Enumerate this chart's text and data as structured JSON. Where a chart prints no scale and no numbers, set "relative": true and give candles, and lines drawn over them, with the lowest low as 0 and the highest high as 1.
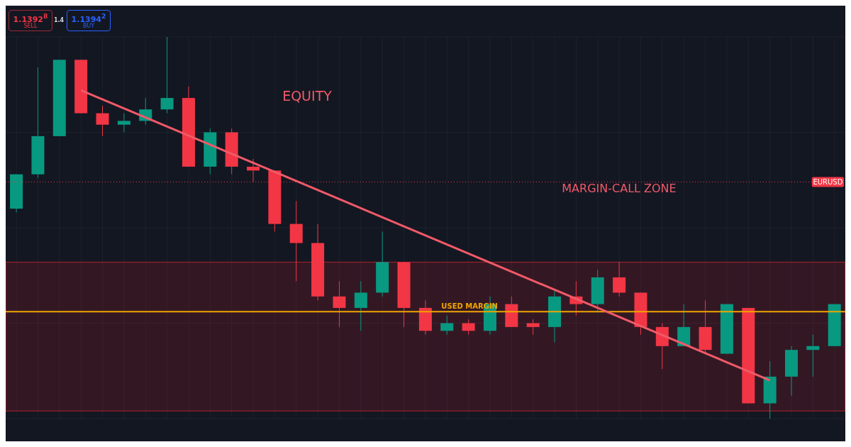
{
  "chart_data": {
    "type": "candlestick",
    "relative": true,
    "categories": [
      null,
      null,
      null,
      null,
      null,
      null,
      null,
      null,
      null,
      null,
      null,
      null,
      null,
      null,
      null,
      null,
      null,
      null,
      null,
      null,
      null,
      null,
      null,
      null,
      null,
      null,
      null,
      null,
      null,
      null,
      null,
      null,
      null,
      null,
      null,
      null,
      null,
      null,
      null
    ],
    "ohlc": [
      [
        0.55,
        0.64,
        0.54,
        0.64
      ],
      [
        0.64,
        0.92,
        0.63,
        0.74
      ],
      [
        0.74,
        0.94,
        0.74,
        0.94
      ],
      [
        0.94,
        0.94,
        0.8,
        0.8
      ],
      [
        0.8,
        0.82,
        0.74,
        0.77
      ],
      [
        0.77,
        0.8,
        0.75,
        0.78
      ],
      [
        0.78,
        0.84,
        0.77,
        0.81
      ],
      [
        0.81,
        1.0,
        0.8,
        0.84
      ],
      [
        0.84,
        0.87,
        0.66,
        0.66
      ],
      [
        0.66,
        0.76,
        0.64,
        0.75
      ],
      [
        0.75,
        0.76,
        0.64,
        0.66
      ],
      [
        0.66,
        0.68,
        0.62,
        0.65
      ],
      [
        0.65,
        0.65,
        0.49,
        0.51
      ],
      [
        0.51,
        0.57,
        0.36,
        0.46
      ],
      [
        0.46,
        0.51,
        0.31,
        0.32
      ],
      [
        0.32,
        0.36,
        0.24,
        0.29
      ],
      [
        0.29,
        0.36,
        0.23,
        0.33
      ],
      [
        0.33,
        0.49,
        0.32,
        0.41
      ],
      [
        0.41,
        0.41,
        0.24,
        0.29
      ],
      [
        0.29,
        0.31,
        0.22,
        0.23
      ],
      [
        0.23,
        0.27,
        0.22,
        0.25
      ],
      [
        0.25,
        0.26,
        0.22,
        0.23
      ],
      [
        0.23,
        0.32,
        0.22,
        0.3
      ],
      [
        0.3,
        0.32,
        0.24,
        0.24
      ],
      [
        0.25,
        0.26,
        0.22,
        0.24
      ],
      [
        0.24,
        0.34,
        0.2,
        0.32
      ],
      [
        0.32,
        0.36,
        0.27,
        0.3
      ],
      [
        0.3,
        0.39,
        0.28,
        0.37
      ],
      [
        0.37,
        0.41,
        0.32,
        0.33
      ],
      [
        0.33,
        0.33,
        0.22,
        0.24
      ],
      [
        0.24,
        0.25,
        0.13,
        0.19
      ],
      [
        0.19,
        0.3,
        0.19,
        0.24
      ],
      [
        0.24,
        0.31,
        0.17,
        0.18
      ],
      [
        0.17,
        0.3,
        0.17,
        0.3
      ],
      [
        0.29,
        0.29,
        0.04,
        0.04
      ],
      [
        0.04,
        0.15,
        0,
        0.11
      ],
      [
        0.11,
        0.19,
        0.06,
        0.18
      ],
      [
        0.18,
        0.22,
        0.11,
        0.19
      ],
      [
        0.19,
        0.3,
        0.19,
        0.3
      ]
    ],
    "colors": [
      "#089981",
      "#089981",
      "#089981",
      "#f23645",
      "#f23645",
      "#089981",
      "#089981",
      "#089981",
      "#f23645",
      "#089981",
      "#f23645",
      "#f23645",
      "#f23645",
      "#f23645",
      "#f23645",
      "#f23645",
      "#089981",
      "#089981",
      "#f23645",
      "#f23645",
      "#089981",
      "#f23645",
      "#089981",
      "#f23645",
      "#f23645",
      "#089981",
      "#f23645",
      "#089981",
      "#f23645",
      "#f23645",
      "#f23645",
      "#089981",
      "#f23645",
      "#089981",
      "#f23645",
      "#089981",
      "#089981",
      "#089981",
      "#089981"
    ],
    "series": [
      {
        "type": "line",
        "color": "#f05a68",
        "values": [
          null,
          null,
          null,
          0.86,
          null,
          null,
          null,
          null,
          null,
          null,
          null,
          null,
          null,
          null,
          null,
          null,
          null,
          null,
          null,
          null,
          null,
          null,
          null,
          null,
          null,
          null,
          null,
          null,
          null,
          null,
          null,
          null,
          null,
          null,
          null,
          0.1,
          null,
          null,
          null
        ]
      }
    ],
    "ref_lines": [
      {
        "axis": "y",
        "value": 0.28,
        "label": "USED MARGIN",
        "color": "#f0a500",
        "line_style": "solid"
      },
      {
        "axis": "y",
        "value": 0.62,
        "label": "EURUSD",
        "color": "#f23645",
        "line_style": "dotted"
      }
    ],
    "bands": [
      {
        "axis": "y",
        "from": 0.02,
        "to": 0.41,
        "color": "#b2202c"
      }
    ],
    "annotations": [
      "1.1392$^{8}$",
      "SELL",
      "1.4",
      "1.1394$^{2}$",
      "BUY",
      "EQUITY",
      "MARGIN-CALL ZONE"
    ],
    "grid": true,
    "tick_labels": false
  }
}
